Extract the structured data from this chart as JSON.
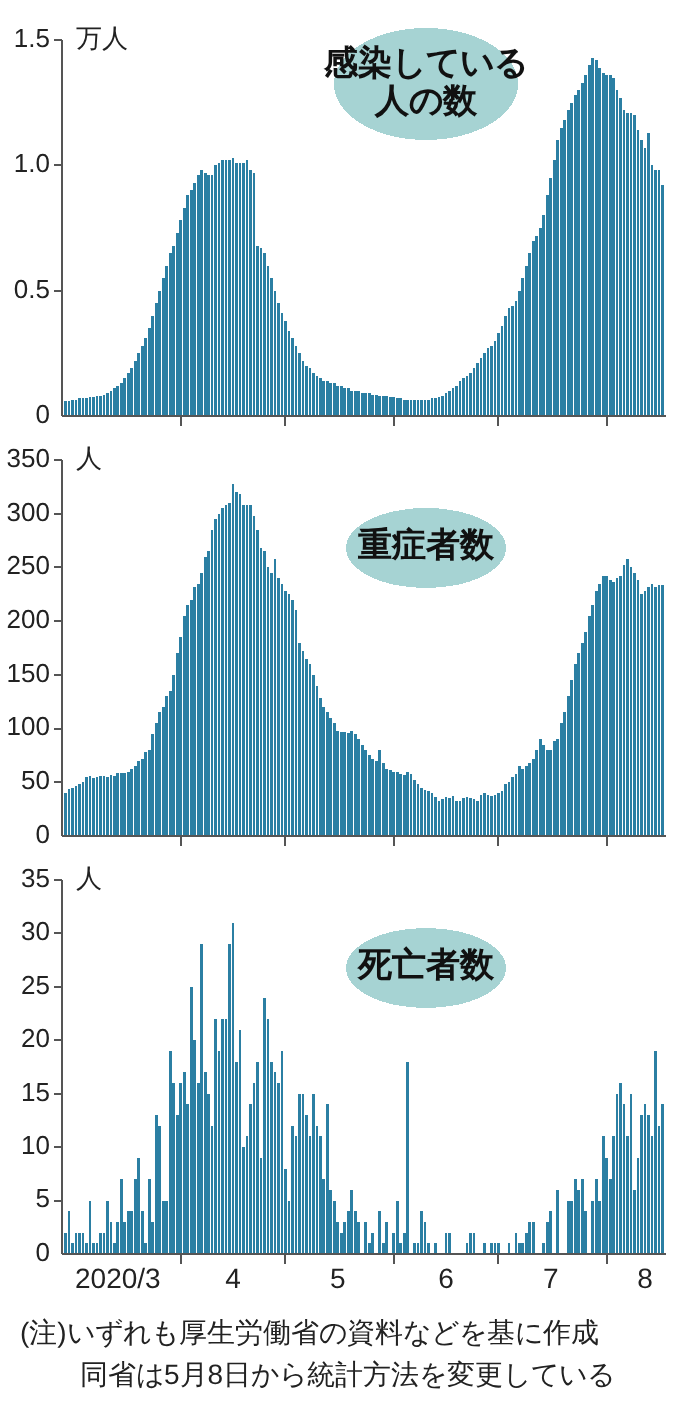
{
  "chart_data": [
    {
      "type": "bar",
      "title": "感染している人の数",
      "ylabel": "万人",
      "color": "#2b7fa3",
      "xlim": [
        "2020-02-27",
        "2020-08-18"
      ],
      "ylim": [
        0,
        1.5
      ],
      "yticks": [
        0,
        0.5,
        {
          "value": 1,
          "label": "1.0"
        },
        1.5
      ],
      "xticks": [
        {
          "value": "2020-04-01",
          "label": null
        },
        {
          "value": "2020-05-01",
          "label": null
        },
        {
          "value": "2020-06-01",
          "label": null
        },
        {
          "value": "2020-07-01",
          "label": null
        },
        {
          "value": "2020-08-01",
          "label": null
        }
      ],
      "tick_labels": "y",
      "x": [
        "2020-02-28",
        "2020-02-29",
        "2020-03-01",
        "2020-03-02",
        "2020-03-03",
        "2020-03-04",
        "2020-03-05",
        "2020-03-06",
        "2020-03-07",
        "2020-03-08",
        "2020-03-09",
        "2020-03-10",
        "2020-03-11",
        "2020-03-12",
        "2020-03-13",
        "2020-03-14",
        "2020-03-15",
        "2020-03-16",
        "2020-03-17",
        "2020-03-18",
        "2020-03-19",
        "2020-03-20",
        "2020-03-21",
        "2020-03-22",
        "2020-03-23",
        "2020-03-24",
        "2020-03-25",
        "2020-03-26",
        "2020-03-27",
        "2020-03-28",
        "2020-03-29",
        "2020-03-30",
        "2020-03-31",
        "2020-04-01",
        "2020-04-02",
        "2020-04-03",
        "2020-04-04",
        "2020-04-05",
        "2020-04-06",
        "2020-04-07",
        "2020-04-08",
        "2020-04-09",
        "2020-04-10",
        "2020-04-11",
        "2020-04-12",
        "2020-04-13",
        "2020-04-14",
        "2020-04-15",
        "2020-04-16",
        "2020-04-17",
        "2020-04-18",
        "2020-04-19",
        "2020-04-20",
        "2020-04-21",
        "2020-04-22",
        "2020-04-23",
        "2020-04-24",
        "2020-04-25",
        "2020-04-26",
        "2020-04-27",
        "2020-04-28",
        "2020-04-29",
        "2020-04-30",
        "2020-05-01",
        "2020-05-02",
        "2020-05-03",
        "2020-05-04",
        "2020-05-05",
        "2020-05-06",
        "2020-05-07",
        "2020-05-08",
        "2020-05-09",
        "2020-05-10",
        "2020-05-11",
        "2020-05-12",
        "2020-05-13",
        "2020-05-14",
        "2020-05-15",
        "2020-05-16",
        "2020-05-17",
        "2020-05-18",
        "2020-05-19",
        "2020-05-20",
        "2020-05-21",
        "2020-05-22",
        "2020-05-23",
        "2020-05-24",
        "2020-05-25",
        "2020-05-26",
        "2020-05-27",
        "2020-05-28",
        "2020-05-29",
        "2020-05-30",
        "2020-05-31",
        "2020-06-01",
        "2020-06-02",
        "2020-06-03",
        "2020-06-04",
        "2020-06-05",
        "2020-06-06",
        "2020-06-07",
        "2020-06-08",
        "2020-06-09",
        "2020-06-10",
        "2020-06-11",
        "2020-06-12",
        "2020-06-13",
        "2020-06-14",
        "2020-06-15",
        "2020-06-16",
        "2020-06-17",
        "2020-06-18",
        "2020-06-19",
        "2020-06-20",
        "2020-06-21",
        "2020-06-22",
        "2020-06-23",
        "2020-06-24",
        "2020-06-25",
        "2020-06-26",
        "2020-06-27",
        "2020-06-28",
        "2020-06-29",
        "2020-06-30",
        "2020-07-01",
        "2020-07-02",
        "2020-07-03",
        "2020-07-04",
        "2020-07-05",
        "2020-07-06",
        "2020-07-07",
        "2020-07-08",
        "2020-07-09",
        "2020-07-10",
        "2020-07-11",
        "2020-07-12",
        "2020-07-13",
        "2020-07-14",
        "2020-07-15",
        "2020-07-16",
        "2020-07-17",
        "2020-07-18",
        "2020-07-19",
        "2020-07-20",
        "2020-07-21",
        "2020-07-22",
        "2020-07-23",
        "2020-07-24",
        "2020-07-25",
        "2020-07-26",
        "2020-07-27",
        "2020-07-28",
        "2020-07-29",
        "2020-07-30",
        "2020-07-31",
        "2020-08-01",
        "2020-08-02",
        "2020-08-03",
        "2020-08-04",
        "2020-08-05",
        "2020-08-06",
        "2020-08-07",
        "2020-08-08",
        "2020-08-09",
        "2020-08-10",
        "2020-08-11",
        "2020-08-12",
        "2020-08-13",
        "2020-08-14",
        "2020-08-15",
        "2020-08-16",
        "2020-08-17"
      ],
      "values": [
        0.06,
        0.06,
        0.065,
        0.065,
        0.07,
        0.07,
        0.07,
        0.075,
        0.075,
        0.08,
        0.08,
        0.085,
        0.09,
        0.1,
        0.11,
        0.12,
        0.13,
        0.15,
        0.17,
        0.19,
        0.22,
        0.25,
        0.28,
        0.31,
        0.35,
        0.4,
        0.45,
        0.5,
        0.55,
        0.6,
        0.65,
        0.68,
        0.73,
        0.78,
        0.83,
        0.88,
        0.9,
        0.93,
        0.96,
        0.98,
        0.97,
        0.96,
        0.96,
        1.0,
        1.01,
        1.02,
        1.02,
        1.02,
        1.03,
        1.01,
        1.01,
        1.01,
        1.02,
        0.98,
        0.97,
        0.68,
        0.67,
        0.65,
        0.6,
        0.55,
        0.5,
        0.45,
        0.41,
        0.38,
        0.34,
        0.31,
        0.28,
        0.25,
        0.22,
        0.2,
        0.19,
        0.17,
        0.16,
        0.15,
        0.14,
        0.14,
        0.13,
        0.13,
        0.12,
        0.12,
        0.11,
        0.11,
        0.1,
        0.1,
        0.1,
        0.09,
        0.09,
        0.09,
        0.085,
        0.085,
        0.08,
        0.08,
        0.08,
        0.075,
        0.075,
        0.07,
        0.07,
        0.065,
        0.065,
        0.065,
        0.065,
        0.065,
        0.065,
        0.065,
        0.065,
        0.07,
        0.07,
        0.075,
        0.08,
        0.09,
        0.1,
        0.11,
        0.12,
        0.14,
        0.15,
        0.16,
        0.17,
        0.19,
        0.21,
        0.23,
        0.25,
        0.27,
        0.28,
        0.3,
        0.33,
        0.36,
        0.4,
        0.43,
        0.44,
        0.46,
        0.5,
        0.55,
        0.6,
        0.65,
        0.7,
        0.72,
        0.75,
        0.8,
        0.88,
        0.95,
        1.02,
        1.1,
        1.15,
        1.18,
        1.22,
        1.25,
        1.28,
        1.3,
        1.33,
        1.36,
        1.4,
        1.43,
        1.42,
        1.39,
        1.37,
        1.36,
        1.36,
        1.35,
        1.3,
        1.27,
        1.22,
        1.21,
        1.21,
        1.2,
        1.14,
        1.1,
        1.07,
        1.13,
        1.0,
        0.98,
        0.98,
        0.92
      ]
    },
    {
      "type": "bar",
      "title": "重症者数",
      "ylabel": "人",
      "color": "#2b7fa3",
      "xlim": [
        "2020-02-27",
        "2020-08-18"
      ],
      "ylim": [
        0,
        350
      ],
      "yticks": [
        0,
        50,
        100,
        150,
        200,
        250,
        300,
        350
      ],
      "xticks": [
        {
          "value": "2020-04-01",
          "label": null
        },
        {
          "value": "2020-05-01",
          "label": null
        },
        {
          "value": "2020-06-01",
          "label": null
        },
        {
          "value": "2020-07-01",
          "label": null
        },
        {
          "value": "2020-08-01",
          "label": null
        }
      ],
      "tick_labels": "y",
      "x": [
        "2020-02-28",
        "2020-02-29",
        "2020-03-01",
        "2020-03-02",
        "2020-03-03",
        "2020-03-04",
        "2020-03-05",
        "2020-03-06",
        "2020-03-07",
        "2020-03-08",
        "2020-03-09",
        "2020-03-10",
        "2020-03-11",
        "2020-03-12",
        "2020-03-13",
        "2020-03-14",
        "2020-03-15",
        "2020-03-16",
        "2020-03-17",
        "2020-03-18",
        "2020-03-19",
        "2020-03-20",
        "2020-03-21",
        "2020-03-22",
        "2020-03-23",
        "2020-03-24",
        "2020-03-25",
        "2020-03-26",
        "2020-03-27",
        "2020-03-28",
        "2020-03-29",
        "2020-03-30",
        "2020-03-31",
        "2020-04-01",
        "2020-04-02",
        "2020-04-03",
        "2020-04-04",
        "2020-04-05",
        "2020-04-06",
        "2020-04-07",
        "2020-04-08",
        "2020-04-09",
        "2020-04-10",
        "2020-04-11",
        "2020-04-12",
        "2020-04-13",
        "2020-04-14",
        "2020-04-15",
        "2020-04-16",
        "2020-04-17",
        "2020-04-18",
        "2020-04-19",
        "2020-04-20",
        "2020-04-21",
        "2020-04-22",
        "2020-04-23",
        "2020-04-24",
        "2020-04-25",
        "2020-04-26",
        "2020-04-27",
        "2020-04-28",
        "2020-04-29",
        "2020-04-30",
        "2020-05-01",
        "2020-05-02",
        "2020-05-03",
        "2020-05-04",
        "2020-05-05",
        "2020-05-06",
        "2020-05-07",
        "2020-05-08",
        "2020-05-09",
        "2020-05-10",
        "2020-05-11",
        "2020-05-12",
        "2020-05-13",
        "2020-05-14",
        "2020-05-15",
        "2020-05-16",
        "2020-05-17",
        "2020-05-18",
        "2020-05-19",
        "2020-05-20",
        "2020-05-21",
        "2020-05-22",
        "2020-05-23",
        "2020-05-24",
        "2020-05-25",
        "2020-05-26",
        "2020-05-27",
        "2020-05-28",
        "2020-05-29",
        "2020-05-30",
        "2020-05-31",
        "2020-06-01",
        "2020-06-02",
        "2020-06-03",
        "2020-06-04",
        "2020-06-05",
        "2020-06-06",
        "2020-06-07",
        "2020-06-08",
        "2020-06-09",
        "2020-06-10",
        "2020-06-11",
        "2020-06-12",
        "2020-06-13",
        "2020-06-14",
        "2020-06-15",
        "2020-06-16",
        "2020-06-17",
        "2020-06-18",
        "2020-06-19",
        "2020-06-20",
        "2020-06-21",
        "2020-06-22",
        "2020-06-23",
        "2020-06-24",
        "2020-06-25",
        "2020-06-26",
        "2020-06-27",
        "2020-06-28",
        "2020-06-29",
        "2020-06-30",
        "2020-07-01",
        "2020-07-02",
        "2020-07-03",
        "2020-07-04",
        "2020-07-05",
        "2020-07-06",
        "2020-07-07",
        "2020-07-08",
        "2020-07-09",
        "2020-07-10",
        "2020-07-11",
        "2020-07-12",
        "2020-07-13",
        "2020-07-14",
        "2020-07-15",
        "2020-07-16",
        "2020-07-17",
        "2020-07-18",
        "2020-07-19",
        "2020-07-20",
        "2020-07-21",
        "2020-07-22",
        "2020-07-23",
        "2020-07-24",
        "2020-07-25",
        "2020-07-26",
        "2020-07-27",
        "2020-07-28",
        "2020-07-29",
        "2020-07-30",
        "2020-07-31",
        "2020-08-01",
        "2020-08-02",
        "2020-08-03",
        "2020-08-04",
        "2020-08-05",
        "2020-08-06",
        "2020-08-07",
        "2020-08-08",
        "2020-08-09",
        "2020-08-10",
        "2020-08-11",
        "2020-08-12",
        "2020-08-13",
        "2020-08-14",
        "2020-08-15",
        "2020-08-16",
        "2020-08-17"
      ],
      "values": [
        40,
        44,
        45,
        47,
        48,
        50,
        55,
        56,
        54,
        55,
        56,
        56,
        55,
        57,
        56,
        59,
        59,
        59,
        60,
        62,
        65,
        70,
        72,
        78,
        80,
        95,
        105,
        115,
        120,
        130,
        135,
        150,
        170,
        185,
        205,
        215,
        220,
        232,
        235,
        245,
        260,
        265,
        285,
        295,
        300,
        305,
        308,
        310,
        328,
        320,
        318,
        308,
        308,
        308,
        298,
        285,
        268,
        265,
        250,
        245,
        258,
        240,
        235,
        228,
        225,
        220,
        210,
        180,
        172,
        165,
        160,
        150,
        140,
        128,
        120,
        115,
        110,
        105,
        98,
        97,
        97,
        96,
        98,
        95,
        90,
        85,
        80,
        75,
        72,
        70,
        80,
        68,
        62,
        61,
        60,
        60,
        58,
        57,
        60,
        58,
        52,
        48,
        45,
        43,
        42,
        40,
        36,
        33,
        34,
        36,
        35,
        37,
        33,
        33,
        35,
        36,
        35,
        34,
        33,
        38,
        40,
        38,
        37,
        38,
        40,
        42,
        48,
        50,
        55,
        58,
        65,
        62,
        65,
        68,
        72,
        80,
        90,
        85,
        80,
        80,
        88,
        90,
        105,
        115,
        130,
        145,
        160,
        170,
        180,
        190,
        205,
        215,
        228,
        235,
        242,
        242,
        238,
        236,
        240,
        242,
        252,
        258,
        250,
        245,
        238,
        225,
        228,
        232,
        235,
        232,
        234,
        234
      ]
    },
    {
      "type": "bar",
      "title": "死亡者数",
      "ylabel": "人",
      "color": "#2b7fa3",
      "xlim": [
        "2020-02-27",
        "2020-08-18"
      ],
      "ylim": [
        0,
        35
      ],
      "yticks": [
        0,
        5,
        10,
        15,
        20,
        25,
        30,
        35
      ],
      "xticks": [
        {
          "value": "2020-03-14",
          "label": "2020/3"
        },
        {
          "value": "2020-04-01",
          "label": null
        },
        {
          "value": "2020-04-16",
          "label": "4"
        },
        {
          "value": "2020-05-01",
          "label": null
        },
        {
          "value": "2020-05-16",
          "label": "5"
        },
        {
          "value": "2020-06-01",
          "label": null
        },
        {
          "value": "2020-06-16",
          "label": "6"
        },
        {
          "value": "2020-07-01",
          "label": null
        },
        {
          "value": "2020-07-16",
          "label": "7"
        },
        {
          "value": "2020-08-01",
          "label": null
        },
        {
          "value": "2020-08-12",
          "label": "8"
        }
      ],
      "annotations": [
        "(注)いずれも厚生労働省の資料などを基に作成",
        "同省は5月8日から統計方法を変更している"
      ],
      "x": [
        "2020-02-28",
        "2020-02-29",
        "2020-03-01",
        "2020-03-02",
        "2020-03-03",
        "2020-03-04",
        "2020-03-05",
        "2020-03-06",
        "2020-03-07",
        "2020-03-08",
        "2020-03-09",
        "2020-03-10",
        "2020-03-11",
        "2020-03-12",
        "2020-03-13",
        "2020-03-14",
        "2020-03-15",
        "2020-03-16",
        "2020-03-17",
        "2020-03-18",
        "2020-03-19",
        "2020-03-20",
        "2020-03-21",
        "2020-03-22",
        "2020-03-23",
        "2020-03-24",
        "2020-03-25",
        "2020-03-26",
        "2020-03-27",
        "2020-03-28",
        "2020-03-29",
        "2020-03-30",
        "2020-03-31",
        "2020-04-01",
        "2020-04-02",
        "2020-04-03",
        "2020-04-04",
        "2020-04-05",
        "2020-04-06",
        "2020-04-07",
        "2020-04-08",
        "2020-04-09",
        "2020-04-10",
        "2020-04-11",
        "2020-04-12",
        "2020-04-13",
        "2020-04-14",
        "2020-04-15",
        "2020-04-16",
        "2020-04-17",
        "2020-04-18",
        "2020-04-19",
        "2020-04-20",
        "2020-04-21",
        "2020-04-22",
        "2020-04-23",
        "2020-04-24",
        "2020-04-25",
        "2020-04-26",
        "2020-04-27",
        "2020-04-28",
        "2020-04-29",
        "2020-04-30",
        "2020-05-01",
        "2020-05-02",
        "2020-05-03",
        "2020-05-04",
        "2020-05-05",
        "2020-05-06",
        "2020-05-07",
        "2020-05-08",
        "2020-05-09",
        "2020-05-10",
        "2020-05-11",
        "2020-05-12",
        "2020-05-13",
        "2020-05-14",
        "2020-05-15",
        "2020-05-16",
        "2020-05-17",
        "2020-05-18",
        "2020-05-19",
        "2020-05-20",
        "2020-05-21",
        "2020-05-22",
        "2020-05-23",
        "2020-05-24",
        "2020-05-25",
        "2020-05-26",
        "2020-05-27",
        "2020-05-28",
        "2020-05-29",
        "2020-05-30",
        "2020-05-31",
        "2020-06-01",
        "2020-06-02",
        "2020-06-03",
        "2020-06-04",
        "2020-06-05",
        "2020-06-06",
        "2020-06-07",
        "2020-06-08",
        "2020-06-09",
        "2020-06-10",
        "2020-06-11",
        "2020-06-12",
        "2020-06-13",
        "2020-06-14",
        "2020-06-15",
        "2020-06-16",
        "2020-06-17",
        "2020-06-18",
        "2020-06-19",
        "2020-06-20",
        "2020-06-21",
        "2020-06-22",
        "2020-06-23",
        "2020-06-24",
        "2020-06-25",
        "2020-06-26",
        "2020-06-27",
        "2020-06-28",
        "2020-06-29",
        "2020-06-30",
        "2020-07-01",
        "2020-07-02",
        "2020-07-03",
        "2020-07-04",
        "2020-07-05",
        "2020-07-06",
        "2020-07-07",
        "2020-07-08",
        "2020-07-09",
        "2020-07-10",
        "2020-07-11",
        "2020-07-12",
        "2020-07-13",
        "2020-07-14",
        "2020-07-15",
        "2020-07-16",
        "2020-07-17",
        "2020-07-18",
        "2020-07-19",
        "2020-07-20",
        "2020-07-21",
        "2020-07-22",
        "2020-07-23",
        "2020-07-24",
        "2020-07-25",
        "2020-07-26",
        "2020-07-27",
        "2020-07-28",
        "2020-07-29",
        "2020-07-30",
        "2020-07-31",
        "2020-08-01",
        "2020-08-02",
        "2020-08-03",
        "2020-08-04",
        "2020-08-05",
        "2020-08-06",
        "2020-08-07",
        "2020-08-08",
        "2020-08-09",
        "2020-08-10",
        "2020-08-11",
        "2020-08-12",
        "2020-08-13",
        "2020-08-14",
        "2020-08-15",
        "2020-08-16",
        "2020-08-17"
      ],
      "values": [
        2,
        4,
        1,
        2,
        2,
        2,
        1,
        5,
        1,
        1,
        2,
        2,
        5,
        3,
        1,
        3,
        7,
        3,
        4,
        4,
        7,
        9,
        4,
        1,
        7,
        3,
        13,
        12,
        5,
        5,
        19,
        16,
        13,
        16,
        17,
        14,
        25,
        20,
        16,
        29,
        17,
        15,
        12,
        22,
        19,
        22,
        22,
        29,
        31,
        18,
        21,
        10,
        11,
        14,
        16,
        18,
        9,
        24,
        22,
        18,
        17,
        16,
        19,
        8,
        5,
        12,
        11,
        15,
        15,
        13,
        11,
        15,
        12,
        11,
        7,
        14,
        6,
        5,
        3,
        2,
        3,
        4,
        6,
        4,
        3,
        0,
        3,
        1,
        2,
        0,
        4,
        1,
        3,
        0,
        2,
        5,
        1,
        2,
        18,
        0,
        1,
        1,
        4,
        3,
        1,
        0,
        1,
        0,
        0,
        2,
        2,
        0,
        0,
        0,
        0,
        1,
        2,
        2,
        0,
        0,
        1,
        0,
        1,
        1,
        1,
        0,
        0,
        1,
        0,
        2,
        1,
        1,
        2,
        3,
        3,
        0,
        0,
        1,
        3,
        4,
        0,
        6,
        0,
        0,
        5,
        5,
        7,
        6,
        7,
        4,
        0,
        5,
        7,
        5,
        11,
        9,
        7,
        11,
        15,
        16,
        14,
        11,
        15,
        6,
        9,
        13,
        14,
        13,
        11,
        19,
        12,
        14
      ]
    }
  ]
}
